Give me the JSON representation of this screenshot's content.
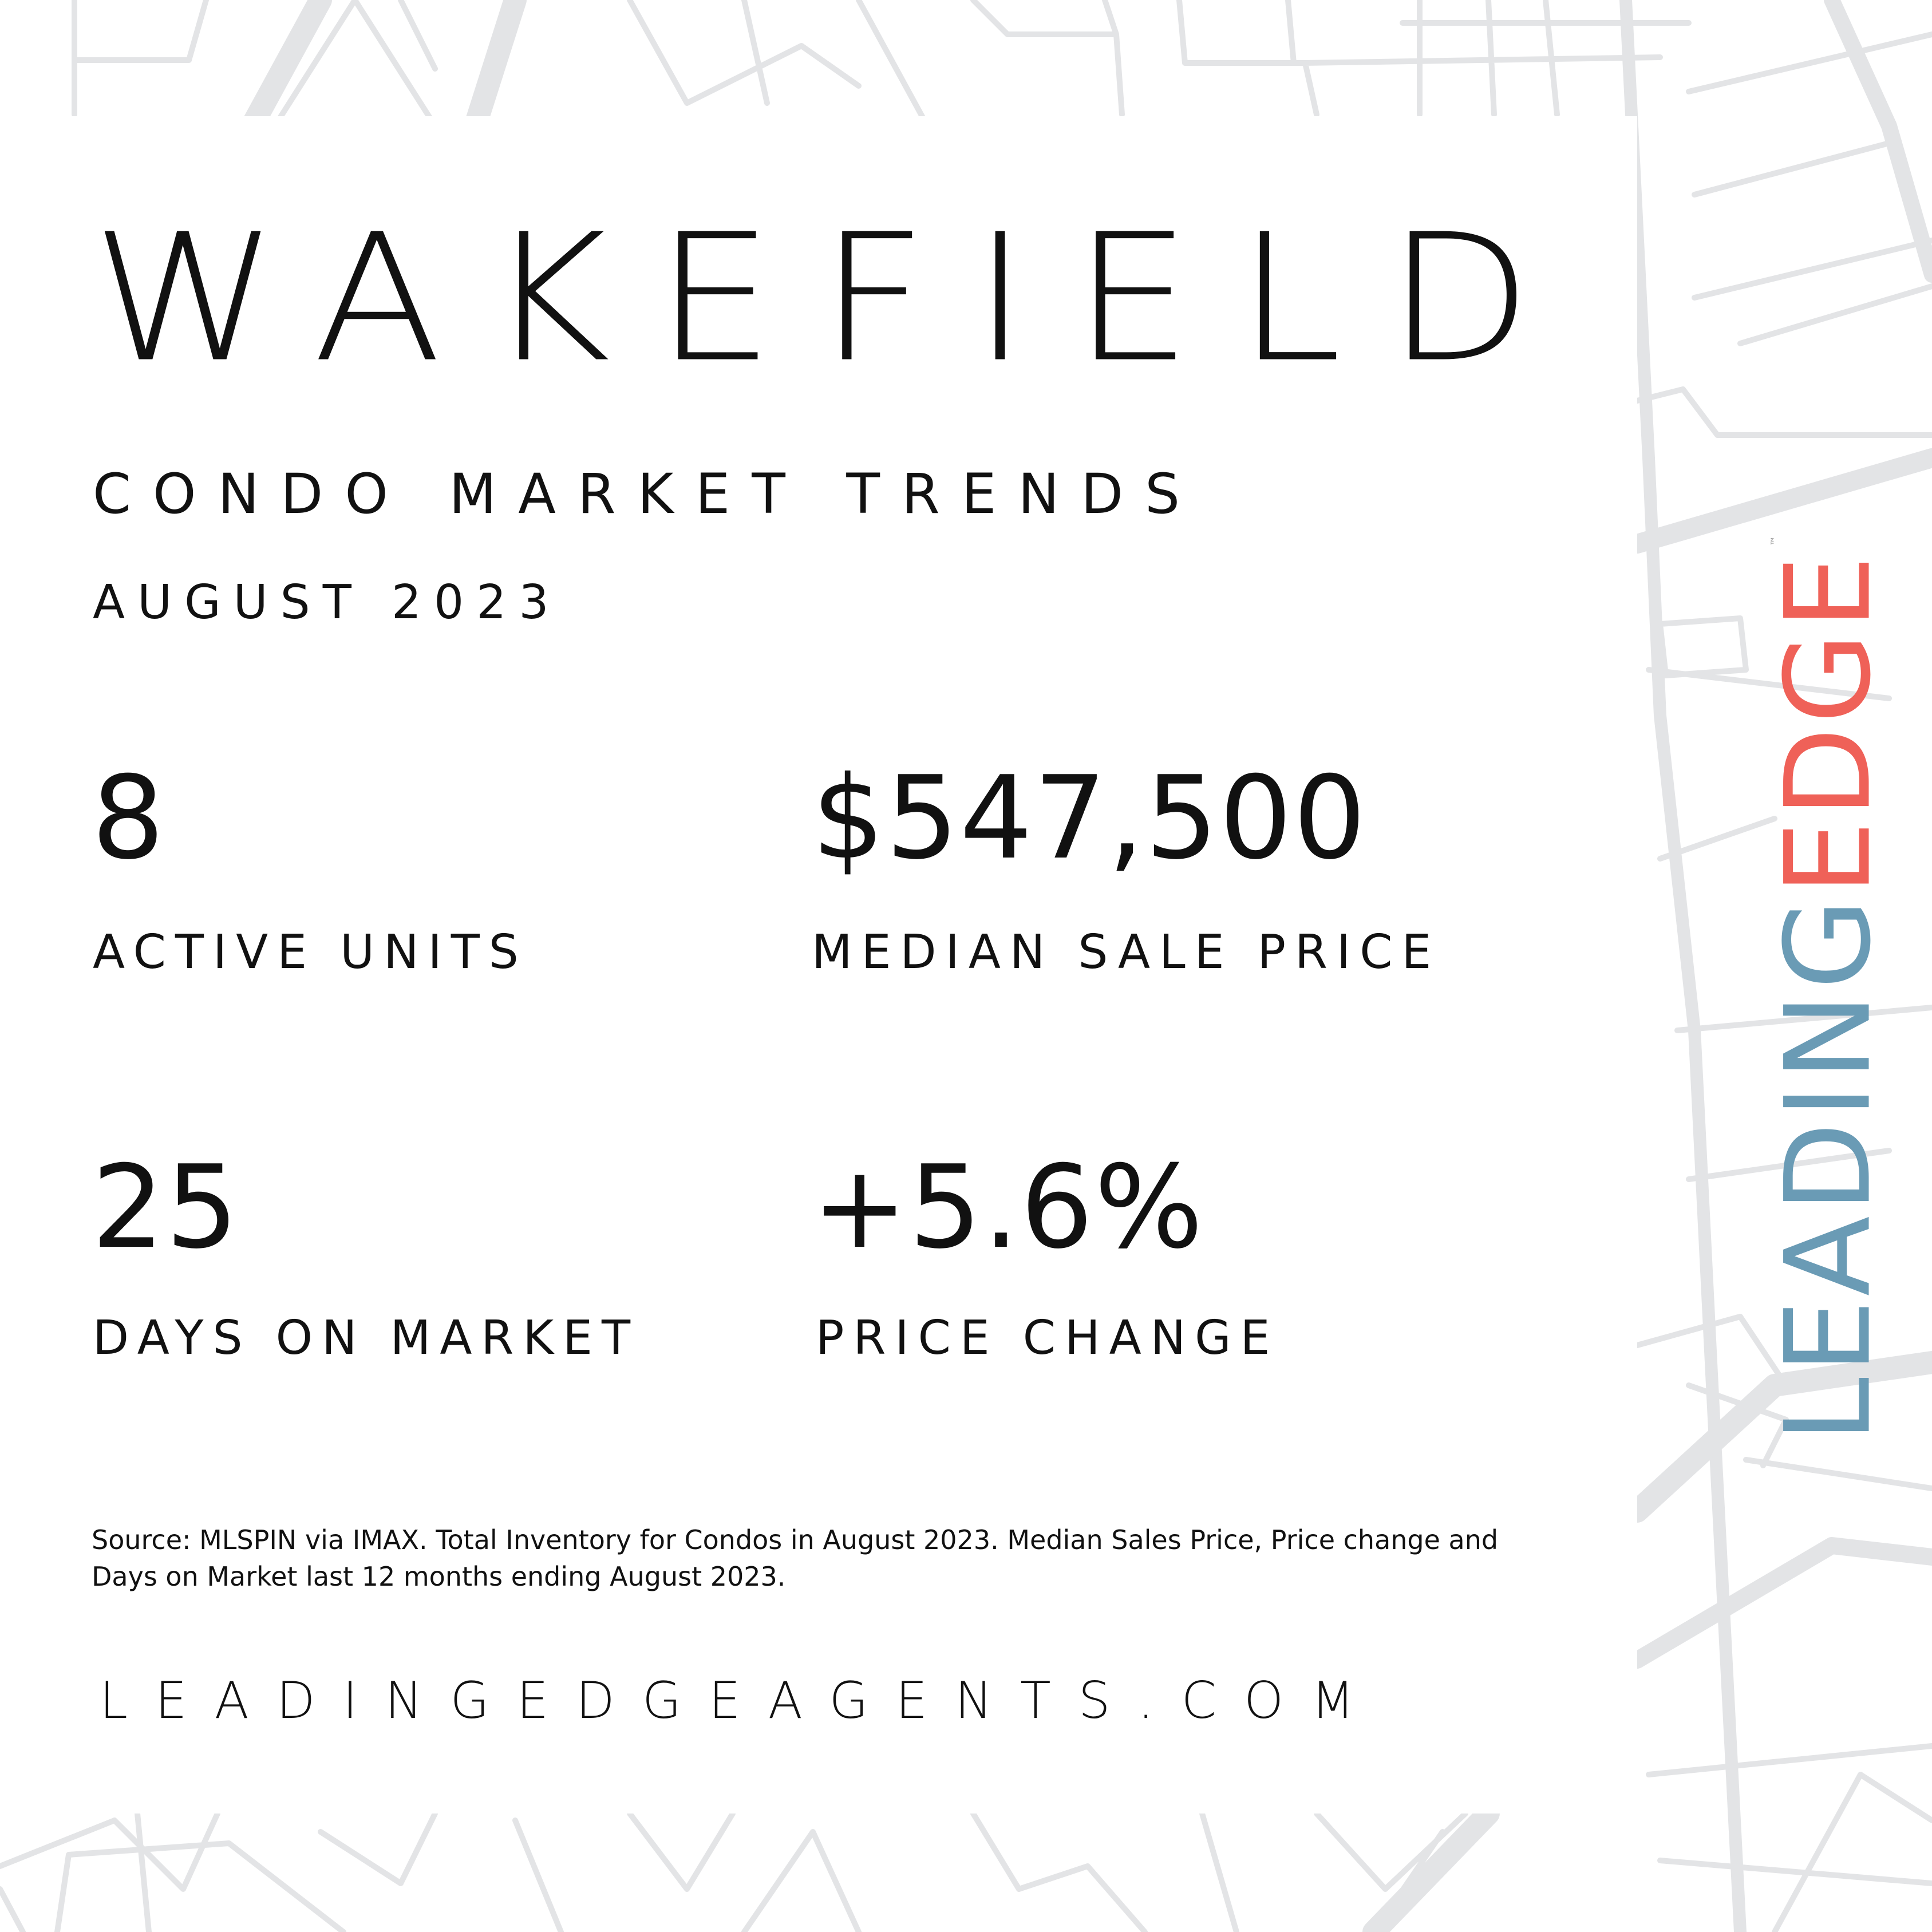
{
  "header": {
    "city": "WAKEFIELD",
    "subtitle": "CONDO MARKET TRENDS",
    "date": "AUGUST 2023"
  },
  "stats": {
    "active_units": {
      "value": "8",
      "label": "ACTIVE UNITS"
    },
    "median_sale_price": {
      "value": "$547,500",
      "label": "MEDIAN SALE PRICE"
    },
    "days_on_market": {
      "value": "25",
      "label": "DAYS ON MARKET"
    },
    "price_change": {
      "value": "+5.6%",
      "label": "PRICE CHANGE"
    }
  },
  "source": "Source: MLSPIN via IMAX. Total Inventory for Condos in August 2023. Median Sales Price, Price change and Days on Market last 12 months ending August 2023.",
  "website": "LEADINGEDGEAGENTS.COM",
  "logo": {
    "part1": "LEADING",
    "part2": "EDGE",
    "tm": "™",
    "colors": {
      "leading": "#6a9bb5",
      "edge": "#ef6158"
    }
  },
  "colors": {
    "text": "#111111",
    "map_lines": "#e3e4e6",
    "background": "#ffffff"
  }
}
